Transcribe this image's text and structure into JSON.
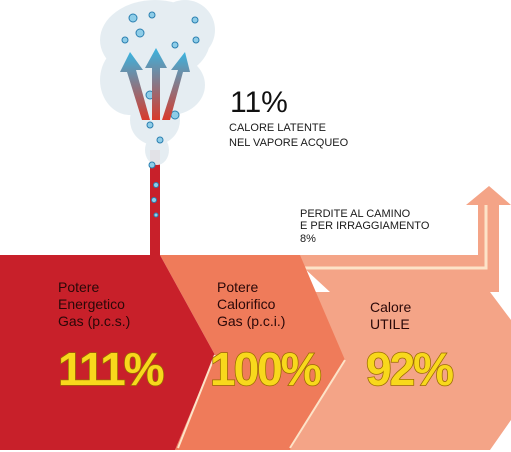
{
  "latent": {
    "value": "11%",
    "lines": [
      "CALORE LATENTE",
      "NEL VAPORE ACQUEO"
    ]
  },
  "stack_loss": {
    "lines": [
      "PERDITE AL CAMINO",
      "E PER  IRRAGGIAMENTO"
    ],
    "value": "8%"
  },
  "stages": [
    {
      "lines": [
        "Potere",
        "Energetico",
        "Gas (p.c.s.)"
      ],
      "value": "111%"
    },
    {
      "lines": [
        "Potere",
        "Calorifico",
        "Gas (p.c.i.)"
      ],
      "value": "100%"
    },
    {
      "lines": [
        "Calore",
        "UTILE"
      ],
      "value": "92%"
    }
  ]
}
